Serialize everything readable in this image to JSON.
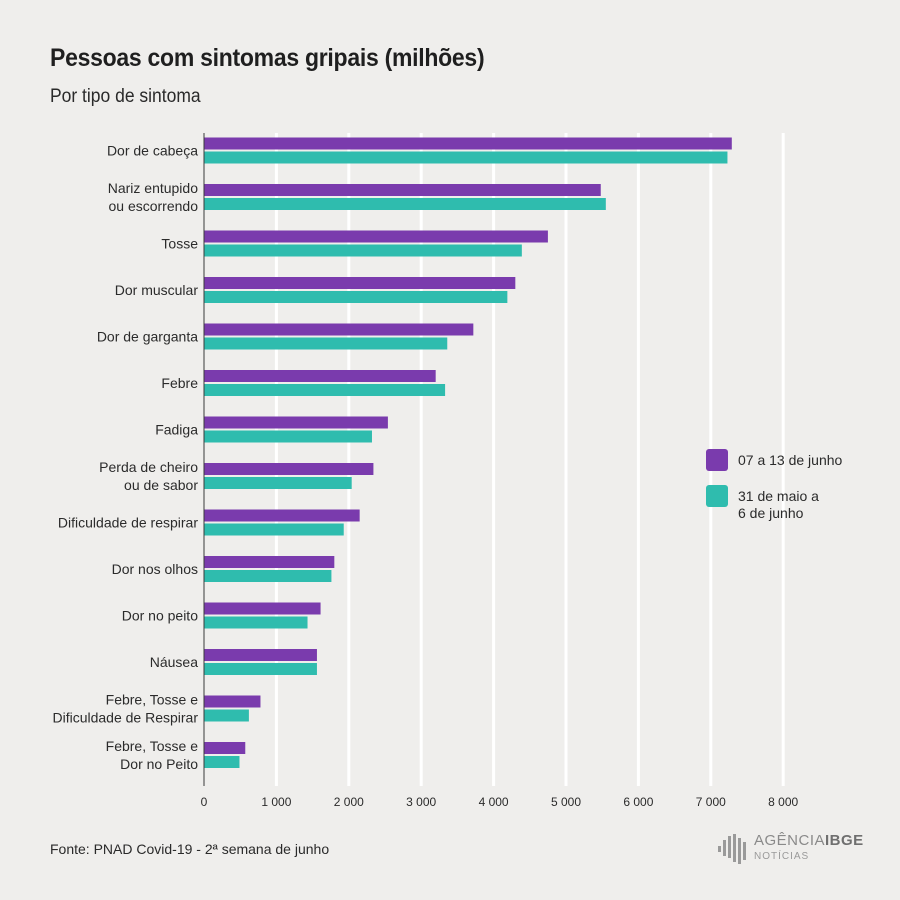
{
  "title": "Pessoas com sintomas gripais (milhões)",
  "subtitle": "Por tipo de sintoma",
  "source": "Fonte: PNAD Covid-19 - 2ª semana de junho",
  "logo": {
    "main_a": "AGÊNCIA",
    "main_b": "IBGE",
    "sub": "NOTÍCIAS"
  },
  "colors": {
    "series1": "#7a3bad",
    "series2": "#2fbcae",
    "grid": "#ffffff",
    "background": "#efeeec"
  },
  "chart_data": {
    "type": "bar",
    "orientation": "horizontal",
    "categories": [
      [
        "Dor de cabeça"
      ],
      [
        "Nariz entupido",
        "ou escorrendo"
      ],
      [
        "Tosse"
      ],
      [
        "Dor muscular"
      ],
      [
        "Dor de garganta"
      ],
      [
        "Febre"
      ],
      [
        "Fadiga"
      ],
      [
        "Perda de cheiro",
        "ou de sabor"
      ],
      [
        "Dificuldade de respirar"
      ],
      [
        "Dor nos olhos"
      ],
      [
        "Dor no peito"
      ],
      [
        "Náusea"
      ],
      [
        "Febre, Tosse e",
        "Dificuldade de Respirar"
      ],
      [
        "Febre, Tosse e",
        "Dor no Peito"
      ]
    ],
    "series": [
      {
        "name": "07 a 13 de junho",
        "color": "#7a3bad",
        "values": [
          7290,
          5480,
          4750,
          4300,
          3720,
          3200,
          2540,
          2340,
          2150,
          1800,
          1610,
          1560,
          780,
          570
        ]
      },
      {
        "name": "31 de maio a 6 de junho",
        "color": "#2fbcae",
        "values": [
          7230,
          5550,
          4390,
          4190,
          3360,
          3330,
          2320,
          2040,
          1930,
          1760,
          1430,
          1560,
          620,
          490
        ]
      }
    ],
    "legend_lines": [
      [
        "07 a 13 de junho"
      ],
      [
        "31 de maio a",
        "6 de junho"
      ]
    ],
    "xlim": [
      0,
      8000
    ],
    "xticks": [
      0,
      1000,
      2000,
      3000,
      4000,
      5000,
      6000,
      7000,
      8000
    ],
    "xtick_labels": [
      "0",
      "1 000",
      "2 000",
      "3 000",
      "4 000",
      "5 000",
      "6 000",
      "7 000",
      "8 000"
    ],
    "grid": true,
    "legend_position": "right"
  }
}
